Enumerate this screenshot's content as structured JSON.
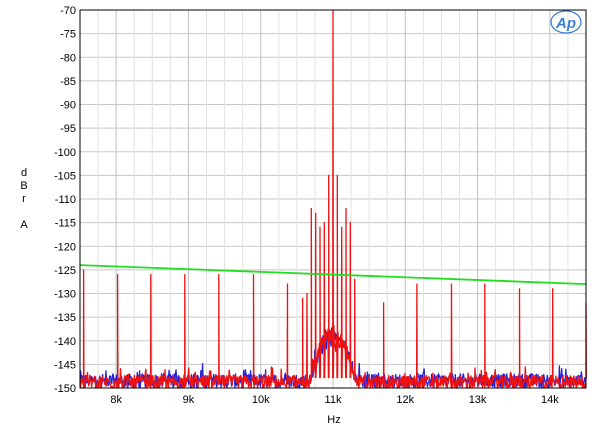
{
  "chart_data": {
    "type": "line",
    "title": "",
    "xlabel": "Hz",
    "ylabel_lines": [
      "d",
      "B",
      "r",
      "",
      "A"
    ],
    "xlim": [
      7500,
      14500
    ],
    "ylim": [
      -150,
      -70
    ],
    "x_ticks": [
      8000,
      9000,
      10000,
      11000,
      12000,
      13000,
      14000
    ],
    "x_tick_labels": [
      "8k",
      "9k",
      "10k",
      "11k",
      "12k",
      "13k",
      "14k"
    ],
    "y_ticks": [
      -70,
      -75,
      -80,
      -85,
      -90,
      -95,
      -100,
      -105,
      -110,
      -115,
      -120,
      -125,
      -130,
      -135,
      -140,
      -145,
      -150
    ],
    "y_tick_labels": [
      "-70",
      "-75",
      "-80",
      "-85",
      "-90",
      "-95",
      "-100",
      "-105",
      "-110",
      "-115",
      "-120",
      "-125",
      "-130",
      "-135",
      "-140",
      "-145",
      "-150"
    ],
    "grid": true,
    "logo": "Ap",
    "series": [
      {
        "color": "#2222dd",
        "noise_floor": -148.5,
        "noise_spread": 1.5,
        "skirt": {
          "center": 11000,
          "halfwidth": 320,
          "rise": 8
        }
      },
      {
        "color": "#ee1111",
        "noise_floor": -148.8,
        "noise_spread": 1.5,
        "skirt": {
          "center": 11000,
          "halfwidth": 320,
          "rise": 8
        },
        "carrier": {
          "x": 11000,
          "y": -70
        },
        "sidebands": [
          {
            "x": 10700,
            "y": -112
          },
          {
            "x": 10760,
            "y": -113
          },
          {
            "x": 10820,
            "y": -116
          },
          {
            "x": 10880,
            "y": -115
          },
          {
            "x": 10940,
            "y": -105
          },
          {
            "x": 11060,
            "y": -105
          },
          {
            "x": 11120,
            "y": -116
          },
          {
            "x": 11180,
            "y": -112
          },
          {
            "x": 11240,
            "y": -115
          },
          {
            "x": 11300,
            "y": -127
          },
          {
            "x": 10640,
            "y": -130
          },
          {
            "x": 10580,
            "y": -131
          }
        ],
        "spurs": [
          {
            "x": 7550,
            "y": -125
          },
          {
            "x": 8020,
            "y": -126
          },
          {
            "x": 8480,
            "y": -126
          },
          {
            "x": 8950,
            "y": -126
          },
          {
            "x": 9420,
            "y": -126
          },
          {
            "x": 9900,
            "y": -126
          },
          {
            "x": 10370,
            "y": -128
          },
          {
            "x": 11700,
            "y": -132
          },
          {
            "x": 12160,
            "y": -128
          },
          {
            "x": 12640,
            "y": -128
          },
          {
            "x": 13100,
            "y": -128
          },
          {
            "x": 13580,
            "y": -129
          },
          {
            "x": 14040,
            "y": -129
          },
          {
            "x": 14500,
            "y": -132
          }
        ]
      },
      {
        "color": "#22dd22",
        "x": [
          7500,
          14500
        ],
        "y": [
          -124,
          -128
        ]
      }
    ]
  }
}
